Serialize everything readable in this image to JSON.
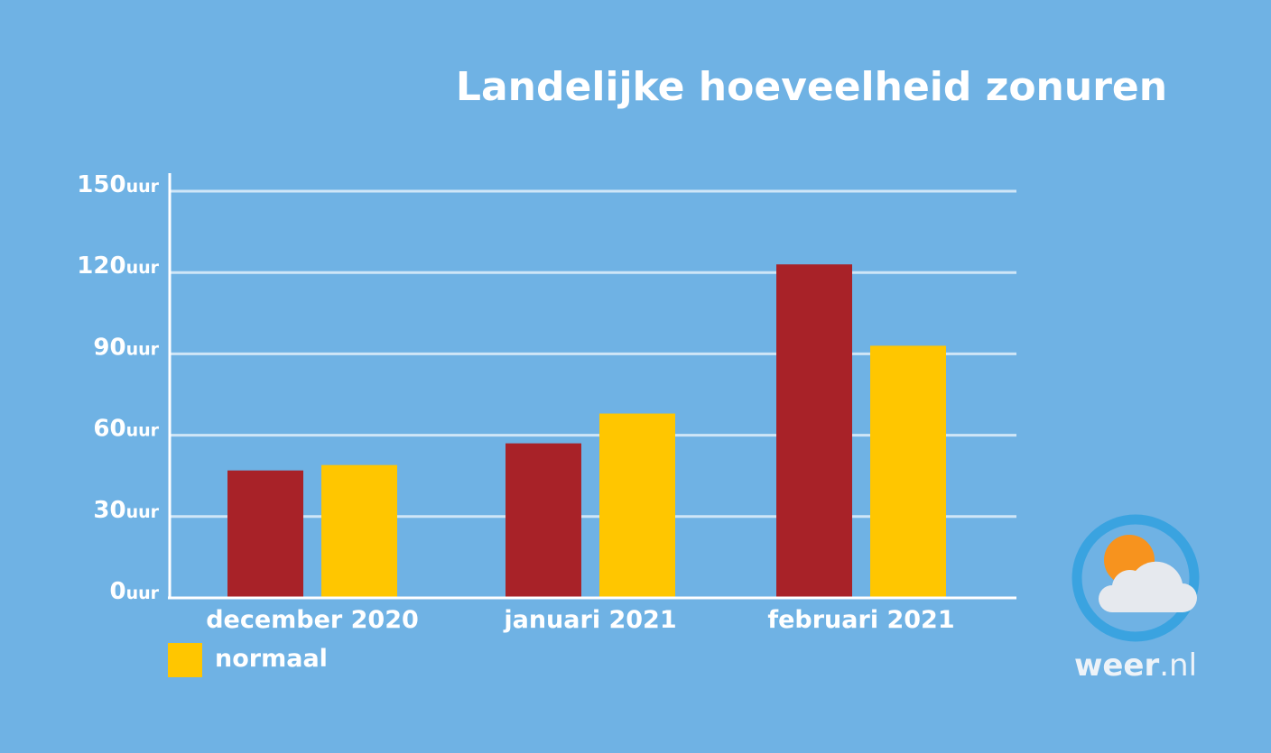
{
  "chart_data": {
    "type": "bar",
    "title": "Landelijke hoeveelheid zonuren",
    "categories": [
      "december 2020",
      "januari 2021",
      "februari 2021"
    ],
    "series": [
      {
        "values": [
          47,
          57,
          123
        ],
        "color": "#a82228"
      },
      {
        "name": "normaal",
        "values": [
          49,
          68,
          93
        ],
        "color": "#ffc600"
      }
    ],
    "ylim": [
      0,
      150
    ],
    "yticks": [
      0,
      30,
      60,
      90,
      120,
      150
    ],
    "ytick_unit": "uur",
    "grid": true,
    "legend_position": "bottom-left"
  },
  "logo": {
    "text_bold": "weer",
    "text_light": ".nl",
    "ring_color": "#3aa3e0",
    "sun_color": "#f7931e",
    "cloud_color": "#e6e9ee"
  }
}
